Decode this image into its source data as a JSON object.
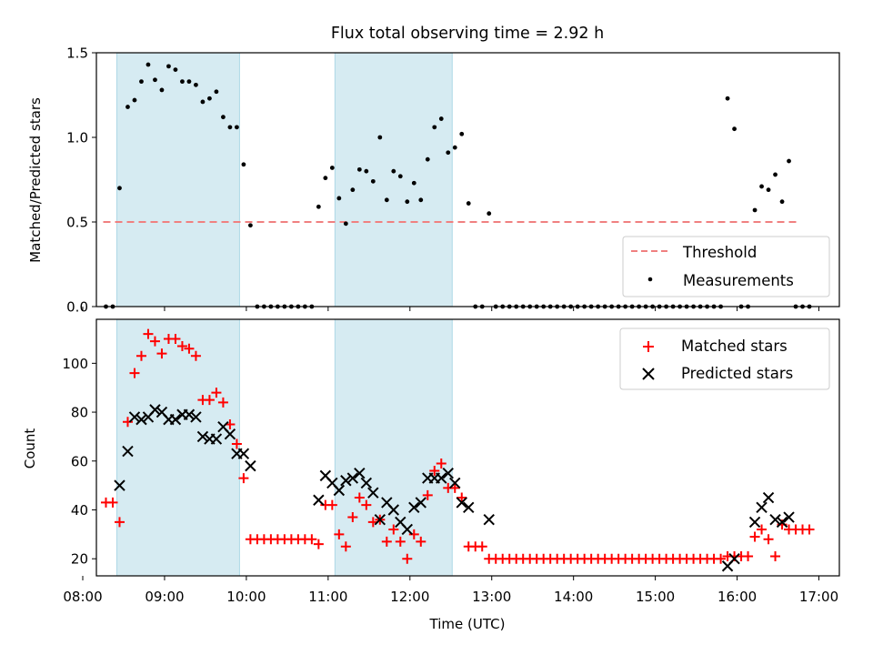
{
  "chart_data": [
    {
      "type": "scatter",
      "title": "Flux total observing time = 2.92 h",
      "xlabel": "",
      "ylabel": "Matched/Predicted stars",
      "xlim": [
        "08:10",
        "17:15"
      ],
      "ylim": [
        0,
        1.5
      ],
      "yticks": [
        "0.0",
        "0.5",
        "1.0",
        "1.5"
      ],
      "grid": false,
      "legend_position": "lower-right",
      "shaded_intervals": [
        [
          "08:25",
          "09:55"
        ],
        [
          "11:05",
          "12:31"
        ]
      ],
      "threshold": {
        "name": "Threshold",
        "value": 0.5,
        "x_range": [
          "08:15",
          "16:45"
        ],
        "color": "#f08080",
        "style": "dashed"
      },
      "series": [
        {
          "name": "Measurements",
          "color": "#000000",
          "marker": "dot",
          "points": [
            [
              "08:17",
              0
            ],
            [
              "08:22",
              0
            ],
            [
              "08:27",
              0.7
            ],
            [
              "08:33",
              1.18
            ],
            [
              "08:38",
              1.22
            ],
            [
              "08:43",
              1.33
            ],
            [
              "08:48",
              1.43
            ],
            [
              "08:53",
              1.34
            ],
            [
              "08:58",
              1.28
            ],
            [
              "09:03",
              1.42
            ],
            [
              "09:08",
              1.4
            ],
            [
              "09:13",
              1.33
            ],
            [
              "09:18",
              1.33
            ],
            [
              "09:23",
              1.31
            ],
            [
              "09:28",
              1.21
            ],
            [
              "09:33",
              1.23
            ],
            [
              "09:38",
              1.27
            ],
            [
              "09:43",
              1.12
            ],
            [
              "09:48",
              1.06
            ],
            [
              "09:53",
              1.06
            ],
            [
              "09:58",
              0.84
            ],
            [
              "10:03",
              0.48
            ],
            [
              "10:08",
              0
            ],
            [
              "10:13",
              0
            ],
            [
              "10:18",
              0
            ],
            [
              "10:23",
              0
            ],
            [
              "10:28",
              0
            ],
            [
              "10:33",
              0
            ],
            [
              "10:38",
              0
            ],
            [
              "10:43",
              0
            ],
            [
              "10:48",
              0
            ],
            [
              "10:53",
              0.59
            ],
            [
              "10:58",
              0.76
            ],
            [
              "11:03",
              0.82
            ],
            [
              "11:08",
              0.64
            ],
            [
              "11:13",
              0.49
            ],
            [
              "11:18",
              0.69
            ],
            [
              "11:23",
              0.81
            ],
            [
              "11:28",
              0.8
            ],
            [
              "11:33",
              0.74
            ],
            [
              "11:38",
              1.0
            ],
            [
              "11:43",
              0.63
            ],
            [
              "11:48",
              0.8
            ],
            [
              "11:53",
              0.77
            ],
            [
              "11:58",
              0.62
            ],
            [
              "12:03",
              0.73
            ],
            [
              "12:08",
              0.63
            ],
            [
              "12:13",
              0.87
            ],
            [
              "12:18",
              1.06
            ],
            [
              "12:23",
              1.11
            ],
            [
              "12:28",
              0.91
            ],
            [
              "12:33",
              0.94
            ],
            [
              "12:38",
              1.02
            ],
            [
              "12:43",
              0.61
            ],
            [
              "12:48",
              0
            ],
            [
              "12:53",
              0
            ],
            [
              "12:58",
              0.55
            ],
            [
              "13:03",
              0
            ],
            [
              "13:08",
              0
            ],
            [
              "13:13",
              0
            ],
            [
              "13:18",
              0
            ],
            [
              "13:23",
              0
            ],
            [
              "13:28",
              0
            ],
            [
              "13:33",
              0
            ],
            [
              "13:38",
              0
            ],
            [
              "13:43",
              0
            ],
            [
              "13:48",
              0
            ],
            [
              "13:53",
              0
            ],
            [
              "13:58",
              0
            ],
            [
              "14:03",
              0
            ],
            [
              "14:08",
              0
            ],
            [
              "14:13",
              0
            ],
            [
              "14:18",
              0
            ],
            [
              "14:23",
              0
            ],
            [
              "14:28",
              0
            ],
            [
              "14:33",
              0
            ],
            [
              "14:38",
              0
            ],
            [
              "14:43",
              0
            ],
            [
              "14:48",
              0
            ],
            [
              "14:53",
              0
            ],
            [
              "14:58",
              0
            ],
            [
              "15:03",
              0
            ],
            [
              "15:08",
              0
            ],
            [
              "15:13",
              0
            ],
            [
              "15:18",
              0
            ],
            [
              "15:23",
              0
            ],
            [
              "15:28",
              0
            ],
            [
              "15:33",
              0
            ],
            [
              "15:38",
              0
            ],
            [
              "15:43",
              0
            ],
            [
              "15:48",
              0
            ],
            [
              "15:53",
              1.23
            ],
            [
              "15:58",
              1.05
            ],
            [
              "16:03",
              0
            ],
            [
              "16:08",
              0
            ],
            [
              "16:13",
              0.57
            ],
            [
              "16:18",
              0.71
            ],
            [
              "16:23",
              0.69
            ],
            [
              "16:28",
              0.78
            ],
            [
              "16:33",
              0.62
            ],
            [
              "16:38",
              0.86
            ],
            [
              "16:43",
              0
            ],
            [
              "16:48",
              0
            ],
            [
              "16:53",
              0
            ]
          ]
        }
      ]
    },
    {
      "type": "scatter",
      "title": "",
      "xlabel": "Time (UTC)",
      "ylabel": "Count",
      "xlim": [
        "08:10",
        "17:15"
      ],
      "ylim": [
        13,
        118
      ],
      "yticks": [
        "20",
        "40",
        "60",
        "80",
        "100"
      ],
      "xticks": [
        "08:00",
        "09:00",
        "10:00",
        "11:00",
        "12:00",
        "13:00",
        "14:00",
        "15:00",
        "16:00",
        "17:00"
      ],
      "grid": false,
      "legend_position": "top-right",
      "shaded_intervals": [
        [
          "08:25",
          "09:55"
        ],
        [
          "11:05",
          "12:31"
        ]
      ],
      "series": [
        {
          "name": "Matched stars",
          "color": "#ff0000",
          "marker": "plus",
          "points": [
            [
              "08:17",
              43
            ],
            [
              "08:22",
              43
            ],
            [
              "08:27",
              35
            ],
            [
              "08:33",
              76
            ],
            [
              "08:38",
              96
            ],
            [
              "08:43",
              103
            ],
            [
              "08:48",
              112
            ],
            [
              "08:53",
              109
            ],
            [
              "08:58",
              104
            ],
            [
              "09:03",
              110
            ],
            [
              "09:08",
              110
            ],
            [
              "09:13",
              107
            ],
            [
              "09:18",
              106
            ],
            [
              "09:23",
              103
            ],
            [
              "09:28",
              85
            ],
            [
              "09:33",
              85
            ],
            [
              "09:38",
              88
            ],
            [
              "09:43",
              84
            ],
            [
              "09:48",
              75
            ],
            [
              "09:53",
              67
            ],
            [
              "09:58",
              53
            ],
            [
              "10:03",
              28
            ],
            [
              "10:08",
              28
            ],
            [
              "10:13",
              28
            ],
            [
              "10:18",
              28
            ],
            [
              "10:23",
              28
            ],
            [
              "10:28",
              28
            ],
            [
              "10:33",
              28
            ],
            [
              "10:38",
              28
            ],
            [
              "10:43",
              28
            ],
            [
              "10:48",
              28
            ],
            [
              "10:53",
              26
            ],
            [
              "10:58",
              42
            ],
            [
              "11:03",
              42
            ],
            [
              "11:08",
              30
            ],
            [
              "11:13",
              25
            ],
            [
              "11:18",
              37
            ],
            [
              "11:23",
              45
            ],
            [
              "11:28",
              42
            ],
            [
              "11:33",
              35
            ],
            [
              "11:38",
              36
            ],
            [
              "11:43",
              27
            ],
            [
              "11:48",
              32
            ],
            [
              "11:53",
              27
            ],
            [
              "11:58",
              20
            ],
            [
              "12:03",
              30
            ],
            [
              "12:08",
              27
            ],
            [
              "12:13",
              46
            ],
            [
              "12:18",
              56
            ],
            [
              "12:23",
              59
            ],
            [
              "12:28",
              49
            ],
            [
              "12:33",
              49
            ],
            [
              "12:38",
              45
            ],
            [
              "12:43",
              25
            ],
            [
              "12:48",
              25
            ],
            [
              "12:53",
              25
            ],
            [
              "12:58",
              20
            ],
            [
              "13:03",
              20
            ],
            [
              "13:08",
              20
            ],
            [
              "13:13",
              20
            ],
            [
              "13:18",
              20
            ],
            [
              "13:23",
              20
            ],
            [
              "13:28",
              20
            ],
            [
              "13:33",
              20
            ],
            [
              "13:38",
              20
            ],
            [
              "13:43",
              20
            ],
            [
              "13:48",
              20
            ],
            [
              "13:53",
              20
            ],
            [
              "13:58",
              20
            ],
            [
              "14:03",
              20
            ],
            [
              "14:08",
              20
            ],
            [
              "14:13",
              20
            ],
            [
              "14:18",
              20
            ],
            [
              "14:23",
              20
            ],
            [
              "14:28",
              20
            ],
            [
              "14:33",
              20
            ],
            [
              "14:38",
              20
            ],
            [
              "14:43",
              20
            ],
            [
              "14:48",
              20
            ],
            [
              "14:53",
              20
            ],
            [
              "14:58",
              20
            ],
            [
              "15:03",
              20
            ],
            [
              "15:08",
              20
            ],
            [
              "15:13",
              20
            ],
            [
              "15:18",
              20
            ],
            [
              "15:23",
              20
            ],
            [
              "15:28",
              20
            ],
            [
              "15:33",
              20
            ],
            [
              "15:38",
              20
            ],
            [
              "15:43",
              20
            ],
            [
              "15:48",
              20
            ],
            [
              "15:53",
              21
            ],
            [
              "15:58",
              21
            ],
            [
              "16:03",
              21
            ],
            [
              "16:08",
              21
            ],
            [
              "16:13",
              29
            ],
            [
              "16:18",
              32
            ],
            [
              "16:23",
              28
            ],
            [
              "16:28",
              21
            ],
            [
              "16:33",
              34
            ],
            [
              "16:38",
              32
            ],
            [
              "16:43",
              32
            ],
            [
              "16:48",
              32
            ],
            [
              "16:53",
              32
            ]
          ]
        },
        {
          "name": "Predicted stars",
          "color": "#000000",
          "marker": "x",
          "points": [
            [
              "08:27",
              50
            ],
            [
              "08:33",
              64
            ],
            [
              "08:38",
              78
            ],
            [
              "08:43",
              77
            ],
            [
              "08:48",
              78
            ],
            [
              "08:53",
              81
            ],
            [
              "08:58",
              80
            ],
            [
              "09:03",
              77
            ],
            [
              "09:08",
              77
            ],
            [
              "09:13",
              79
            ],
            [
              "09:18",
              79
            ],
            [
              "09:23",
              78
            ],
            [
              "09:28",
              70
            ],
            [
              "09:33",
              69
            ],
            [
              "09:38",
              69
            ],
            [
              "09:43",
              74
            ],
            [
              "09:48",
              71
            ],
            [
              "09:53",
              63
            ],
            [
              "09:58",
              63
            ],
            [
              "10:03",
              58
            ],
            [
              "10:53",
              44
            ],
            [
              "10:58",
              54
            ],
            [
              "11:03",
              51
            ],
            [
              "11:08",
              48
            ],
            [
              "11:13",
              52
            ],
            [
              "11:18",
              53
            ],
            [
              "11:23",
              55
            ],
            [
              "11:28",
              51
            ],
            [
              "11:33",
              47
            ],
            [
              "11:38",
              36
            ],
            [
              "11:43",
              43
            ],
            [
              "11:48",
              40
            ],
            [
              "11:53",
              35
            ],
            [
              "11:58",
              32
            ],
            [
              "12:03",
              41
            ],
            [
              "12:08",
              43
            ],
            [
              "12:13",
              53
            ],
            [
              "12:18",
              53
            ],
            [
              "12:23",
              53
            ],
            [
              "12:28",
              55
            ],
            [
              "12:33",
              51
            ],
            [
              "12:38",
              43
            ],
            [
              "12:43",
              41
            ],
            [
              "12:58",
              36
            ],
            [
              "15:53",
              17
            ],
            [
              "15:58",
              20
            ],
            [
              "16:13",
              35
            ],
            [
              "16:18",
              41
            ],
            [
              "16:23",
              45
            ],
            [
              "16:28",
              36
            ],
            [
              "16:33",
              35
            ],
            [
              "16:38",
              37
            ]
          ]
        }
      ]
    }
  ]
}
